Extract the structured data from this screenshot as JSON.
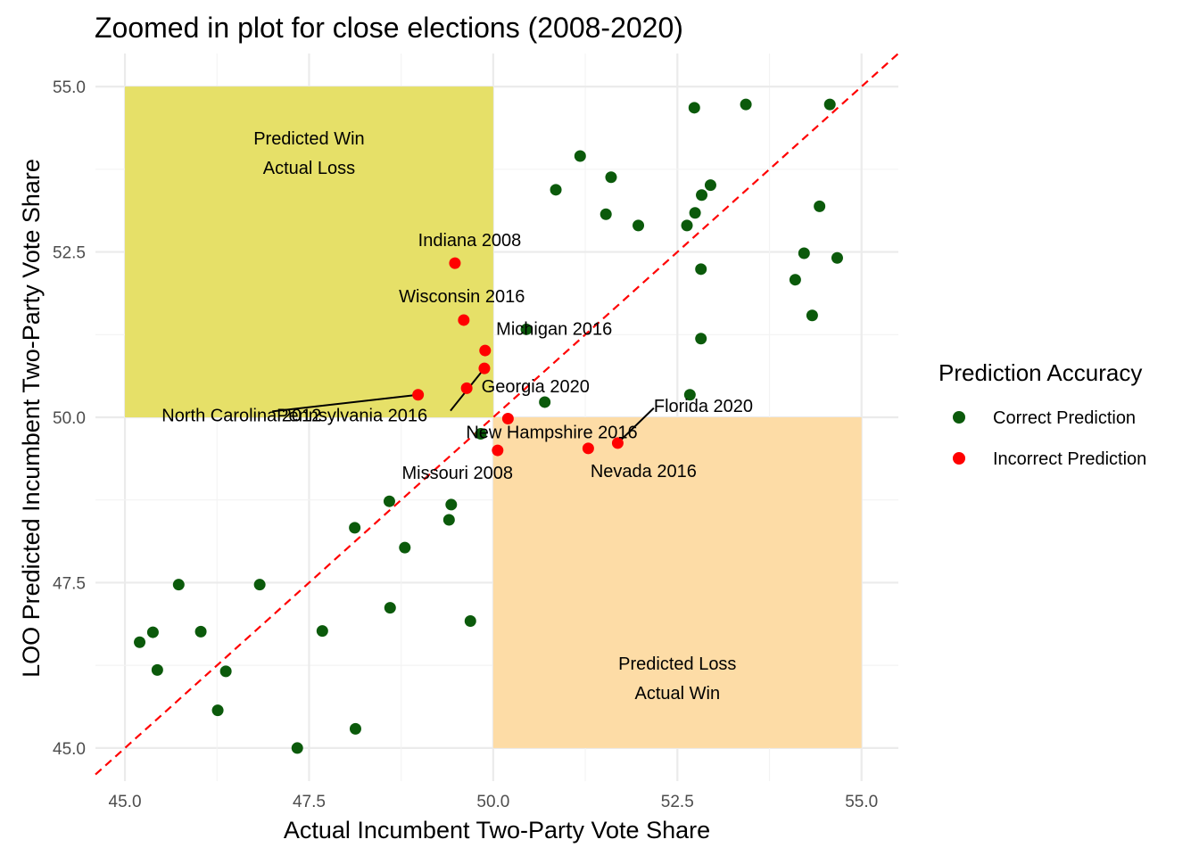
{
  "chart_data": {
    "type": "scatter",
    "title": "Zoomed in plot for close elections (2008-2020)",
    "xlabel": "Actual Incumbent Two-Party Vote Share",
    "ylabel": "LOO Predicted Incumbent Two-Party Vote Share",
    "xlim": [
      44.6,
      55.5
    ],
    "ylim": [
      44.5,
      55.5
    ],
    "xticks": [
      "45.0",
      "47.5",
      "50.0",
      "52.5",
      "55.0"
    ],
    "yticks": [
      "45.0",
      "47.5",
      "50.0",
      "52.5",
      "55.0"
    ],
    "grid": true,
    "legend": {
      "title": "Prediction Accuracy",
      "position": "right",
      "entries": [
        {
          "label": "Correct Prediction",
          "color": "#0b5a0b"
        },
        {
          "label": "Incorrect Prediction",
          "color": "#ff0000"
        }
      ]
    },
    "reference_line": {
      "type": "y = x",
      "color": "#ff0000",
      "style": "dashed"
    },
    "regions": [
      {
        "x": [
          45,
          50
        ],
        "y": [
          50,
          55
        ],
        "color": "#e6e068",
        "lines": [
          "Predicted Win",
          "Actual Loss"
        ]
      },
      {
        "x": [
          50,
          55
        ],
        "y": [
          45,
          50
        ],
        "color": "#fddca6",
        "lines": [
          "Predicted Loss",
          "Actual Win"
        ]
      }
    ],
    "series": [
      {
        "name": "Correct Prediction",
        "color": "#0b5a0b",
        "points": [
          {
            "x": 45.2,
            "y": 46.6
          },
          {
            "x": 45.38,
            "y": 46.75
          },
          {
            "x": 45.44,
            "y": 46.18
          },
          {
            "x": 45.73,
            "y": 47.47
          },
          {
            "x": 46.03,
            "y": 46.76
          },
          {
            "x": 46.26,
            "y": 45.57
          },
          {
            "x": 46.37,
            "y": 46.16
          },
          {
            "x": 46.83,
            "y": 47.47
          },
          {
            "x": 47.34,
            "y": 45.0
          },
          {
            "x": 47.68,
            "y": 46.77
          },
          {
            "x": 48.12,
            "y": 48.33
          },
          {
            "x": 48.13,
            "y": 45.29
          },
          {
            "x": 48.59,
            "y": 48.73
          },
          {
            "x": 48.6,
            "y": 47.12
          },
          {
            "x": 48.8,
            "y": 48.03
          },
          {
            "x": 49.4,
            "y": 48.45
          },
          {
            "x": 49.43,
            "y": 48.68
          },
          {
            "x": 49.69,
            "y": 46.92
          },
          {
            "x": 49.83,
            "y": 49.75
          },
          {
            "x": 50.45,
            "y": 51.33
          },
          {
            "x": 50.7,
            "y": 50.23
          },
          {
            "x": 50.85,
            "y": 53.44
          },
          {
            "x": 51.18,
            "y": 53.95
          },
          {
            "x": 51.53,
            "y": 53.07
          },
          {
            "x": 51.6,
            "y": 53.63
          },
          {
            "x": 51.97,
            "y": 52.9
          },
          {
            "x": 52.63,
            "y": 52.9
          },
          {
            "x": 52.67,
            "y": 50.34
          },
          {
            "x": 52.73,
            "y": 54.68
          },
          {
            "x": 52.74,
            "y": 53.09
          },
          {
            "x": 52.82,
            "y": 52.24
          },
          {
            "x": 52.82,
            "y": 51.19
          },
          {
            "x": 52.83,
            "y": 53.36
          },
          {
            "x": 52.95,
            "y": 53.51
          },
          {
            "x": 53.43,
            "y": 54.73
          },
          {
            "x": 54.1,
            "y": 52.08
          },
          {
            "x": 54.22,
            "y": 52.48
          },
          {
            "x": 54.33,
            "y": 51.54
          },
          {
            "x": 54.43,
            "y": 53.19
          },
          {
            "x": 54.57,
            "y": 54.73
          },
          {
            "x": 54.67,
            "y": 52.41
          }
        ]
      },
      {
        "name": "Incorrect Prediction",
        "color": "#ff0000",
        "points": [
          {
            "x": 48.98,
            "y": 50.34
          },
          {
            "x": 49.48,
            "y": 52.33
          },
          {
            "x": 49.6,
            "y": 51.47
          },
          {
            "x": 49.64,
            "y": 50.44
          },
          {
            "x": 49.88,
            "y": 50.74
          },
          {
            "x": 49.89,
            "y": 51.01
          },
          {
            "x": 50.06,
            "y": 49.5
          },
          {
            "x": 50.2,
            "y": 49.98
          },
          {
            "x": 51.29,
            "y": 49.53
          },
          {
            "x": 51.69,
            "y": 49.61
          }
        ]
      }
    ],
    "annotations": [
      {
        "text": "Indiana 2008",
        "point": [
          49.48,
          52.33
        ],
        "tx": 48.98,
        "ty": 52.59,
        "anchor": "start",
        "leader": false
      },
      {
        "text": "Wisconsin 2016",
        "point": [
          49.6,
          51.47
        ],
        "tx": 48.72,
        "ty": 51.74,
        "anchor": "start",
        "leader": false
      },
      {
        "text": "Michigan 2016",
        "point": [
          49.89,
          51.01
        ],
        "tx": 50.04,
        "ty": 51.25,
        "anchor": "start",
        "leader": false
      },
      {
        "text": "Georgia 2020",
        "point": [
          49.64,
          50.44
        ],
        "tx": 49.84,
        "ty": 50.38,
        "anchor": "start",
        "leader": false
      },
      {
        "text": "North Carolina 2012",
        "point": [
          48.98,
          50.34
        ],
        "tx": 45.5,
        "ty": 49.94,
        "anchor": "start",
        "leader": true,
        "leader_to": [
          47.0,
          50.09
        ]
      },
      {
        "text": "Pennsylvania 2016",
        "point": [
          49.88,
          50.74
        ],
        "tx": 47.06,
        "ty": 49.94,
        "anchor": "start",
        "leader": true,
        "leader_to": [
          49.42,
          50.1
        ]
      },
      {
        "text": "New Hampshire 2016",
        "point": [
          50.2,
          49.98
        ],
        "tx": 49.63,
        "ty": 49.68,
        "anchor": "start",
        "leader": false
      },
      {
        "text": "Florida 2020",
        "point": [
          51.69,
          49.61
        ],
        "tx": 52.18,
        "ty": 50.08,
        "anchor": "start",
        "leader": true,
        "leader_to": [
          52.18,
          50.14
        ]
      },
      {
        "text": "Missouri 2008",
        "point": [
          50.06,
          49.5
        ],
        "tx": 48.76,
        "ty": 49.07,
        "anchor": "start",
        "leader": false
      },
      {
        "text": "Nevada 2016",
        "point": [
          51.29,
          49.53
        ],
        "tx": 51.32,
        "ty": 49.1,
        "anchor": "start",
        "leader": false
      }
    ]
  }
}
